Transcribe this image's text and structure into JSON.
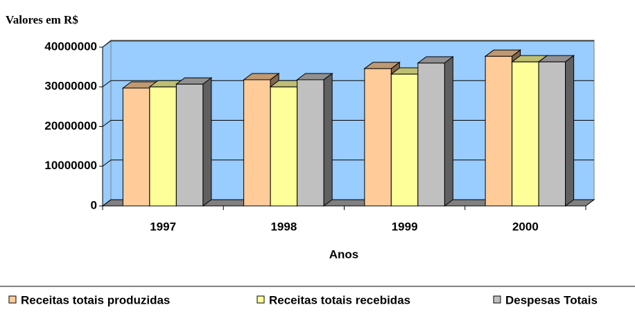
{
  "chart_data": {
    "type": "bar",
    "y_label": "Valores em R$",
    "x_label": "Anos",
    "categories": [
      "1997",
      "1998",
      "1999",
      "2000"
    ],
    "series": [
      {
        "name": "Receitas totais produzidas",
        "color": "#ffcc99",
        "values": [
          29700000,
          31800000,
          34600000,
          37700000
        ]
      },
      {
        "name": "Receitas totais recebidas",
        "color": "#ffff99",
        "values": [
          30000000,
          30000000,
          33200000,
          36300000
        ]
      },
      {
        "name": "Despesas Totais",
        "color": "#c0c0c0",
        "values": [
          30700000,
          31800000,
          36000000,
          36300000
        ]
      }
    ],
    "ylim": [
      0,
      40000000
    ],
    "yticks": [
      0,
      10000000,
      20000000,
      30000000,
      40000000
    ],
    "grid": true,
    "legend": "bottom",
    "wall_color": "#99ccff",
    "floor_color": "#808080"
  }
}
